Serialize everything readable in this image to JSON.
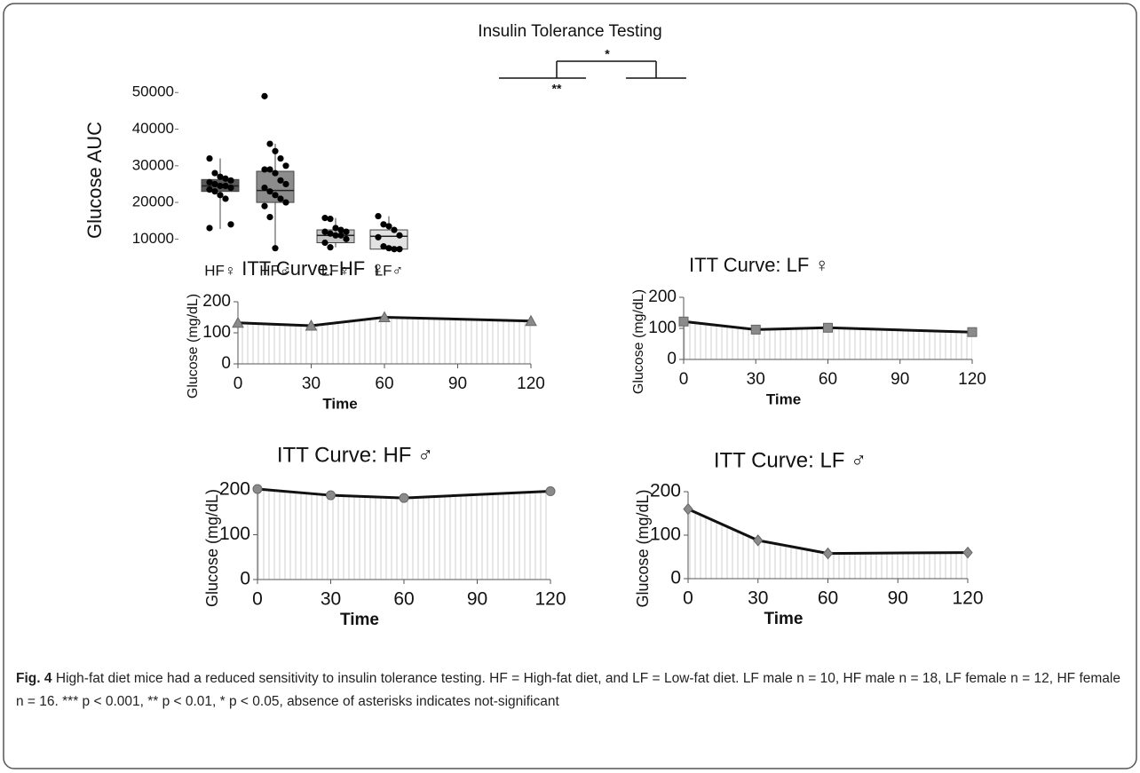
{
  "chart_data": [
    {
      "type": "box",
      "title": "Insulin Tolerance Testing",
      "ylabel": "Glucose AUC",
      "categories": [
        "HF♀",
        "HF♂",
        "LF♀",
        "LF♂"
      ],
      "colors": [
        "#5a5a5a",
        "#8c8c8c",
        "#c4c4c4",
        "#e2e2e2"
      ],
      "boxes": [
        {
          "whislo": 12750,
          "q1": 23000,
          "med": 24500,
          "q3": 26250,
          "whishi": 32000,
          "points": [
            32000,
            28000,
            27000,
            26500,
            26000,
            25500,
            25000,
            24500,
            24500,
            24000,
            23500,
            23000,
            22000,
            21000,
            14000,
            13000
          ]
        },
        {
          "whislo": 7500,
          "q1": 20000,
          "med": 23250,
          "q3": 28500,
          "whishi": 36000,
          "points": [
            49000,
            36000,
            34000,
            32000,
            30000,
            29000,
            29000,
            28000,
            26000,
            25000,
            24000,
            23000,
            22000,
            21000,
            20000,
            19000,
            16000,
            7500
          ]
        },
        {
          "whislo": 7750,
          "q1": 9000,
          "med": 11000,
          "q3": 12500,
          "whishi": 15750,
          "points": [
            15750,
            15500,
            13000,
            12500,
            12000,
            12000,
            11500,
            11000,
            11000,
            10000,
            9000,
            7750
          ]
        },
        {
          "whislo": 7250,
          "q1": 7250,
          "med": 10750,
          "q3": 12500,
          "whishi": 16250,
          "points": [
            16250,
            14000,
            13500,
            12500,
            11000,
            10500,
            8000,
            7500,
            7250,
            7250
          ]
        }
      ],
      "ylim": [
        5000,
        52000
      ],
      "yticks": [
        10000,
        20000,
        30000,
        40000,
        50000
      ],
      "annotations": [
        "**",
        "*"
      ]
    },
    {
      "type": "line",
      "title": "ITT Curve: HF ♀",
      "xlabel": "Time",
      "ylabel": "Glucose (mg/dL)",
      "x": [
        0,
        30,
        60,
        120
      ],
      "values": [
        132,
        123,
        150,
        138
      ],
      "color": "#111",
      "marker": "triangle",
      "marker_color": "#8a8a8a",
      "xlim": [
        0,
        120
      ],
      "xticks": [
        0,
        30,
        60,
        90,
        120
      ],
      "ylim": [
        0,
        200
      ],
      "yticks": [
        0,
        100,
        200
      ]
    },
    {
      "type": "line",
      "title": "ITT Curve: LF ♀",
      "xlabel": "Time",
      "ylabel": "Glucose (mg/dL)",
      "x": [
        0,
        30,
        60,
        120
      ],
      "values": [
        122,
        96,
        102,
        88
      ],
      "color": "#111",
      "marker": "square",
      "marker_color": "#8a8a8a",
      "xlim": [
        0,
        120
      ],
      "xticks": [
        0,
        30,
        60,
        90,
        120
      ],
      "ylim": [
        0,
        200
      ],
      "yticks": [
        0,
        100,
        200
      ]
    },
    {
      "type": "line",
      "title": "ITT Curve: HF ♂",
      "xlabel": "Time",
      "ylabel": "Glucose (mg/dL)",
      "x": [
        0,
        30,
        60,
        120
      ],
      "values": [
        202,
        188,
        182,
        197
      ],
      "color": "#111",
      "marker": "circle",
      "marker_color": "#8a8a8a",
      "xlim": [
        0,
        120
      ],
      "xticks": [
        0,
        30,
        60,
        90,
        120
      ],
      "ylim": [
        0,
        200
      ],
      "yticks": [
        0,
        100,
        200
      ]
    },
    {
      "type": "line",
      "title": "ITT Curve: LF ♂",
      "xlabel": "Time",
      "ylabel": "Glucose (mg/dL)",
      "x": [
        0,
        30,
        60,
        120
      ],
      "values": [
        160,
        88,
        58,
        60
      ],
      "color": "#111",
      "marker": "diamond",
      "marker_color": "#8a8a8a",
      "xlim": [
        0,
        120
      ],
      "xticks": [
        0,
        30,
        60,
        90,
        120
      ],
      "ylim": [
        0,
        200
      ],
      "yticks": [
        0,
        100,
        200
      ]
    }
  ],
  "caption": {
    "label": "Fig. 4",
    "text": "High-fat diet mice had a reduced sensitivity to insulin tolerance testing. HF = High-fat diet, and LF = Low-fat diet. LF male n = 10, HF male n = 18, LF female n = 12, HF female n = 16. *** p < 0.001, ** p < 0.01, * p < 0.05, absence of asterisks indicates not-significant"
  }
}
